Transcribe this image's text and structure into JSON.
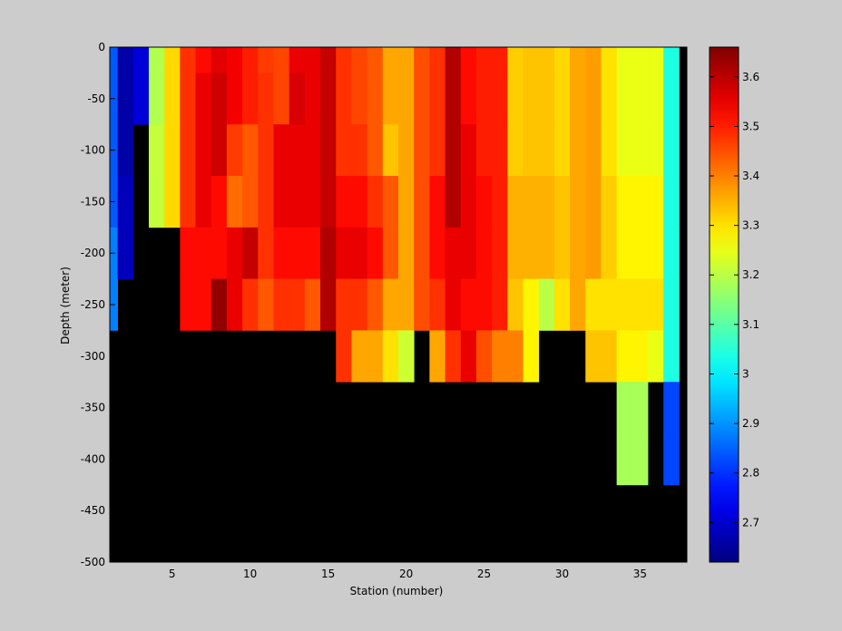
{
  "chart_data": {
    "type": "heatmap",
    "title": "",
    "xlabel": "Station (number)",
    "ylabel": "Depth (meter)",
    "xlim": [
      1,
      38
    ],
    "ylim": [
      -500,
      0
    ],
    "xticks": [
      5,
      10,
      15,
      20,
      25,
      30,
      35
    ],
    "yticks": [
      0,
      -50,
      -100,
      -150,
      -200,
      -250,
      -300,
      -350,
      -400,
      -450,
      -500
    ],
    "colorbar": {
      "colormap": "jet-like",
      "range": [
        2.62,
        3.66
      ],
      "ticks": [
        2.7,
        2.8,
        2.9,
        3,
        3.1,
        3.2,
        3.3,
        3.4,
        3.5,
        3.6
      ],
      "tick_labels": [
        "2.7",
        "2.8",
        "2.9",
        "3",
        "3.1",
        "3.2",
        "3.3",
        "3.4",
        "3.5",
        "3.6"
      ]
    },
    "missing_color": "#000000",
    "depth_bins": [
      0,
      -25,
      -75,
      -125,
      -175,
      -225,
      -275,
      -325,
      -375,
      -425,
      -475,
      -500
    ],
    "stations": [
      1,
      2,
      3,
      4,
      5,
      6,
      7,
      8,
      9,
      10,
      11,
      12,
      13,
      14,
      15,
      16,
      17,
      18,
      19,
      20,
      21,
      22,
      23,
      24,
      25,
      26,
      27,
      28,
      29,
      30,
      31,
      32,
      33,
      34,
      35,
      36,
      37
    ],
    "values": [
      [
        2.84,
        2.66,
        2.71,
        3.19,
        3.31,
        3.48,
        3.52,
        3.56,
        3.54,
        3.5,
        3.47,
        3.46,
        3.55,
        3.55,
        3.59,
        3.48,
        3.46,
        3.44,
        3.36,
        3.36,
        3.45,
        3.48,
        3.61,
        3.52,
        3.5,
        3.5,
        3.32,
        3.33,
        3.33,
        3.31,
        3.36,
        3.37,
        3.3,
        3.25,
        3.25,
        3.25,
        3.04
      ],
      [
        2.84,
        2.66,
        2.71,
        3.19,
        3.31,
        3.48,
        3.55,
        3.58,
        3.54,
        3.5,
        3.48,
        3.46,
        3.57,
        3.55,
        3.59,
        3.48,
        3.46,
        3.44,
        3.36,
        3.36,
        3.45,
        3.48,
        3.61,
        3.52,
        3.5,
        3.5,
        3.32,
        3.33,
        3.33,
        3.31,
        3.36,
        3.37,
        3.3,
        3.25,
        3.25,
        3.25,
        3.04
      ],
      [
        2.84,
        2.66,
        null,
        3.21,
        3.31,
        3.48,
        3.55,
        3.58,
        3.47,
        3.44,
        3.48,
        3.55,
        3.55,
        3.55,
        3.59,
        3.48,
        3.48,
        3.44,
        3.33,
        3.36,
        3.45,
        3.48,
        3.61,
        3.55,
        3.5,
        3.5,
        3.32,
        3.33,
        3.33,
        3.31,
        3.36,
        3.37,
        3.3,
        3.25,
        3.25,
        3.25,
        3.04
      ],
      [
        2.84,
        2.68,
        null,
        3.21,
        3.31,
        3.48,
        3.55,
        3.52,
        3.42,
        3.44,
        3.48,
        3.55,
        3.55,
        3.55,
        3.59,
        3.52,
        3.52,
        3.48,
        3.44,
        3.36,
        3.45,
        3.52,
        3.61,
        3.55,
        3.52,
        3.5,
        3.35,
        3.35,
        3.35,
        3.33,
        3.36,
        3.37,
        3.32,
        3.28,
        3.28,
        3.28,
        3.04
      ],
      [
        2.88,
        2.68,
        null,
        null,
        null,
        3.52,
        3.52,
        3.52,
        3.55,
        3.59,
        3.48,
        3.52,
        3.52,
        3.52,
        3.61,
        3.55,
        3.55,
        3.52,
        3.44,
        3.36,
        3.45,
        3.52,
        3.55,
        3.55,
        3.52,
        3.5,
        3.35,
        3.35,
        3.35,
        3.33,
        3.36,
        3.37,
        3.32,
        3.28,
        3.28,
        3.28,
        3.04
      ],
      [
        2.88,
        null,
        null,
        null,
        null,
        3.52,
        3.52,
        3.64,
        3.55,
        3.48,
        3.44,
        3.48,
        3.48,
        3.44,
        3.61,
        3.48,
        3.48,
        3.44,
        3.36,
        3.36,
        3.45,
        3.48,
        3.55,
        3.52,
        3.52,
        3.5,
        3.33,
        3.28,
        3.2,
        3.3,
        3.36,
        3.3,
        3.3,
        3.3,
        3.3,
        3.3,
        3.04
      ],
      [
        null,
        null,
        null,
        null,
        null,
        null,
        null,
        null,
        null,
        null,
        null,
        null,
        null,
        null,
        null,
        3.48,
        3.36,
        3.36,
        3.3,
        3.22,
        null,
        3.36,
        3.48,
        3.55,
        3.45,
        3.4,
        3.4,
        3.28,
        null,
        null,
        null,
        3.33,
        3.33,
        3.28,
        3.28,
        3.25,
        3.04
      ],
      [
        null,
        null,
        null,
        null,
        null,
        null,
        null,
        null,
        null,
        null,
        null,
        null,
        null,
        null,
        null,
        null,
        null,
        null,
        null,
        null,
        null,
        null,
        null,
        null,
        null,
        null,
        null,
        null,
        null,
        null,
        null,
        null,
        null,
        3.18,
        3.18,
        null,
        2.82
      ],
      [
        null,
        null,
        null,
        null,
        null,
        null,
        null,
        null,
        null,
        null,
        null,
        null,
        null,
        null,
        null,
        null,
        null,
        null,
        null,
        null,
        null,
        null,
        null,
        null,
        null,
        null,
        null,
        null,
        null,
        null,
        null,
        null,
        null,
        3.18,
        3.18,
        null,
        2.82
      ],
      [
        null,
        null,
        null,
        null,
        null,
        null,
        null,
        null,
        null,
        null,
        null,
        null,
        null,
        null,
        null,
        null,
        null,
        null,
        null,
        null,
        null,
        null,
        null,
        null,
        null,
        null,
        null,
        null,
        null,
        null,
        null,
        null,
        null,
        null,
        null,
        null,
        null
      ],
      [
        null,
        null,
        null,
        null,
        null,
        null,
        null,
        null,
        null,
        null,
        null,
        null,
        null,
        null,
        null,
        null,
        null,
        null,
        null,
        null,
        null,
        null,
        null,
        null,
        null,
        null,
        null,
        null,
        null,
        null,
        null,
        null,
        null,
        null,
        null,
        null,
        null
      ]
    ]
  }
}
